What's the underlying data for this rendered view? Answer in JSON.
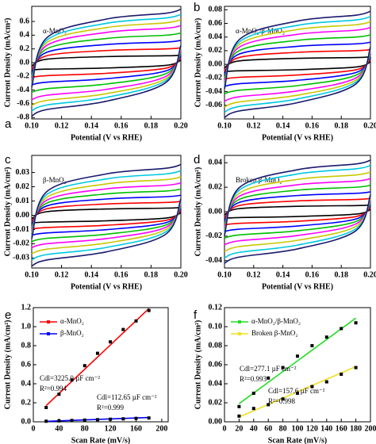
{
  "chart_data": [
    {
      "type": "cv",
      "label": "a",
      "annotation": "α-MnO₂",
      "xlabel": "Potential (V vs RHE)",
      "ylabel": "Current Density (mA/cm²)",
      "xlim": [
        0.1,
        0.2
      ],
      "xticks": [
        {
          "value": 0.1,
          "label": "0.10"
        },
        {
          "value": 0.12,
          "label": "0.12"
        },
        {
          "value": 0.14,
          "label": "0.14"
        },
        {
          "value": 0.16,
          "label": "0.16"
        },
        {
          "value": 0.18,
          "label": "0.18"
        },
        {
          "value": 0.2,
          "label": "0.20"
        }
      ],
      "ylim": [
        -0.82,
        0.82
      ],
      "yticks": [
        -0.8,
        -0.6,
        -0.4,
        -0.2,
        {
          "value": 0,
          "label": "0.0"
        },
        0.2,
        0.4,
        0.6
      ],
      "x": [
        0.1,
        0.11,
        0.15,
        0.19,
        0.2
      ],
      "series": [
        {
          "color": "#000000",
          "upper": [
            -0.05,
            0.05,
            0.088,
            0.1,
            0.108
          ],
          "lower": [
            -0.108,
            -0.095,
            -0.078,
            -0.04,
            0.035
          ]
        },
        {
          "color": "#ff0000",
          "upper": [
            -0.1,
            0.1,
            0.176,
            0.2,
            0.216
          ],
          "lower": [
            -0.216,
            -0.19,
            -0.156,
            -0.08,
            0.07
          ]
        },
        {
          "color": "#0000ff",
          "upper": [
            -0.15,
            0.15,
            0.264,
            0.3,
            0.324
          ],
          "lower": [
            -0.324,
            -0.285,
            -0.234,
            -0.12,
            0.105
          ]
        },
        {
          "color": "#00c000",
          "upper": [
            -0.2,
            0.2,
            0.352,
            0.4,
            0.432
          ],
          "lower": [
            -0.432,
            -0.38,
            -0.312,
            -0.16,
            0.14
          ]
        },
        {
          "color": "#ff00ff",
          "upper": [
            -0.25,
            0.25,
            0.44,
            0.5,
            0.54
          ],
          "lower": [
            -0.54,
            -0.475,
            -0.39,
            -0.2,
            0.175
          ]
        },
        {
          "color": "#c8c800",
          "upper": [
            -0.29,
            0.29,
            0.51,
            0.58,
            0.626
          ],
          "lower": [
            -0.626,
            -0.551,
            -0.452,
            -0.232,
            0.203
          ]
        },
        {
          "color": "#00c8e0",
          "upper": [
            -0.325,
            0.325,
            0.572,
            0.65,
            0.702
          ],
          "lower": [
            -0.702,
            -0.618,
            -0.507,
            -0.26,
            0.228
          ]
        },
        {
          "color": "#1a1a6e",
          "upper": [
            -0.36,
            0.36,
            0.634,
            0.72,
            0.778
          ],
          "lower": [
            -0.778,
            -0.684,
            -0.562,
            -0.288,
            0.252
          ]
        }
      ]
    },
    {
      "type": "cv",
      "label": "b",
      "annotation": "α-MnO₂/β-MnO₂",
      "xlabel": "Potential (V vs RHE)",
      "ylabel": "Current Density (mA/cm²)",
      "xlim": [
        0.1,
        0.2
      ],
      "xticks": [
        {
          "value": 0.1,
          "label": "0.10"
        },
        {
          "value": 0.12,
          "label": "0.12"
        },
        {
          "value": 0.14,
          "label": "0.14"
        },
        {
          "value": 0.16,
          "label": "0.16"
        },
        {
          "value": 0.18,
          "label": "0.18"
        },
        {
          "value": 0.2,
          "label": "0.20"
        }
      ],
      "ylim": [
        -0.08,
        0.085
      ],
      "yticks": [
        -0.06,
        -0.04,
        -0.02,
        {
          "value": 0,
          "label": "0.00"
        },
        0.02,
        0.04,
        0.06,
        0.08
      ],
      "x": [
        0.1,
        0.11,
        0.15,
        0.19,
        0.2
      ],
      "series": [
        {
          "color": "#000000",
          "upper": [
            -0.005,
            0.005,
            0.0088,
            0.01,
            0.0108
          ],
          "lower": [
            -0.0108,
            -0.0095,
            -0.0078,
            -0.004,
            0.0035
          ]
        },
        {
          "color": "#ff0000",
          "upper": [
            -0.01,
            0.01,
            0.0176,
            0.02,
            0.0216
          ],
          "lower": [
            -0.0216,
            -0.019,
            -0.0156,
            -0.008,
            0.007
          ]
        },
        {
          "color": "#0000ff",
          "upper": [
            -0.015,
            0.015,
            0.0264,
            0.03,
            0.0324
          ],
          "lower": [
            -0.0324,
            -0.0285,
            -0.0234,
            -0.012,
            0.0105
          ]
        },
        {
          "color": "#00c000",
          "upper": [
            -0.02,
            0.02,
            0.0352,
            0.04,
            0.0432
          ],
          "lower": [
            -0.0432,
            -0.038,
            -0.0312,
            -0.016,
            0.014
          ]
        },
        {
          "color": "#ff00ff",
          "upper": [
            -0.025,
            0.025,
            0.044,
            0.05,
            0.054
          ],
          "lower": [
            -0.054,
            -0.0475,
            -0.039,
            -0.02,
            0.0175
          ]
        },
        {
          "color": "#c8c800",
          "upper": [
            -0.029,
            0.029,
            0.051,
            0.058,
            0.0626
          ],
          "lower": [
            -0.0626,
            -0.0551,
            -0.0452,
            -0.0232,
            0.0203
          ]
        },
        {
          "color": "#00c8e0",
          "upper": [
            -0.0325,
            0.0325,
            0.0572,
            0.065,
            0.0702
          ],
          "lower": [
            -0.0702,
            -0.0618,
            -0.0507,
            -0.026,
            0.0228
          ]
        },
        {
          "color": "#1a1a6e",
          "upper": [
            -0.036,
            0.036,
            0.0634,
            0.072,
            0.0778
          ],
          "lower": [
            -0.0778,
            -0.0684,
            -0.0562,
            -0.0288,
            0.0252
          ]
        }
      ]
    },
    {
      "type": "cv",
      "label": "c",
      "annotation": "β-MnO₂",
      "xlabel": "Potential (V vs RHE)",
      "ylabel": "Current Density (mA/cm²)",
      "xlim": [
        0.1,
        0.2
      ],
      "xticks": [
        {
          "value": 0.1,
          "label": "0.10"
        },
        {
          "value": 0.12,
          "label": "0.12"
        },
        {
          "value": 0.14,
          "label": "0.14"
        },
        {
          "value": 0.16,
          "label": "0.16"
        },
        {
          "value": 0.18,
          "label": "0.18"
        },
        {
          "value": 0.2,
          "label": "0.20"
        }
      ],
      "ylim": [
        -0.037,
        0.042
      ],
      "yticks": [
        -0.03,
        -0.02,
        -0.01,
        {
          "value": 0,
          "label": "0.00"
        },
        0.01,
        0.02,
        0.03
      ],
      "x": [
        0.1,
        0.11,
        0.15,
        0.19,
        0.2
      ],
      "series": [
        {
          "color": "#000000",
          "upper": [
            -0.0025,
            0.0025,
            0.0044,
            0.005,
            0.0054
          ],
          "lower": [
            -0.0054,
            -0.0048,
            -0.0039,
            -0.002,
            0.0018
          ]
        },
        {
          "color": "#ff0000",
          "upper": [
            -0.0045,
            0.0045,
            0.0079,
            0.009,
            0.0097
          ],
          "lower": [
            -0.0097,
            -0.0086,
            -0.007,
            -0.0036,
            0.0032
          ]
        },
        {
          "color": "#0000ff",
          "upper": [
            -0.0065,
            0.0065,
            0.0114,
            0.013,
            0.014
          ],
          "lower": [
            -0.014,
            -0.0124,
            -0.0101,
            -0.0052,
            0.0046
          ]
        },
        {
          "color": "#00c000",
          "upper": [
            -0.0085,
            0.0085,
            0.015,
            0.017,
            0.0184
          ],
          "lower": [
            -0.0184,
            -0.0162,
            -0.0133,
            -0.0068,
            0.006
          ]
        },
        {
          "color": "#ff00ff",
          "upper": [
            -0.0105,
            0.0105,
            0.0185,
            0.021,
            0.0227
          ],
          "lower": [
            -0.0227,
            -0.02,
            -0.0164,
            -0.0084,
            0.0074
          ]
        },
        {
          "color": "#c8c800",
          "upper": [
            -0.0125,
            0.0125,
            0.022,
            0.025,
            0.027
          ],
          "lower": [
            -0.027,
            -0.0238,
            -0.0195,
            -0.01,
            0.0088
          ]
        },
        {
          "color": "#00c8e0",
          "upper": [
            -0.0145,
            0.0145,
            0.0255,
            0.029,
            0.0313
          ],
          "lower": [
            -0.0313,
            -0.0276,
            -0.0226,
            -0.0116,
            0.0102
          ]
        },
        {
          "color": "#1a1a6e",
          "upper": [
            -0.0165,
            0.0165,
            0.029,
            0.033,
            0.0356
          ],
          "lower": [
            -0.0356,
            -0.0314,
            -0.0257,
            -0.0132,
            0.0116
          ]
        }
      ]
    },
    {
      "type": "cv",
      "label": "d",
      "annotation": "Broken β-MnO₂",
      "xlabel": "Potential (V vs RHE)",
      "ylabel": "Current Density (mA/cm²)",
      "xlim": [
        0.1,
        0.2
      ],
      "xticks": [
        {
          "value": 0.1,
          "label": "0.10"
        },
        {
          "value": 0.12,
          "label": "0.12"
        },
        {
          "value": 0.14,
          "label": "0.14"
        },
        {
          "value": 0.16,
          "label": "0.16"
        },
        {
          "value": 0.18,
          "label": "0.18"
        },
        {
          "value": 0.2,
          "label": "0.20"
        }
      ],
      "ylim": [
        -0.046,
        0.046
      ],
      "yticks": [
        -0.04,
        -0.02,
        {
          "value": 0,
          "label": "0.00"
        },
        0.02,
        0.04
      ],
      "x": [
        0.1,
        0.11,
        0.15,
        0.19,
        0.2
      ],
      "series": [
        {
          "color": "#000000",
          "upper": [
            -0.0025,
            0.0025,
            0.0044,
            0.005,
            0.0054
          ],
          "lower": [
            -0.0054,
            -0.0048,
            -0.0039,
            -0.002,
            0.0018
          ]
        },
        {
          "color": "#ff0000",
          "upper": [
            -0.005,
            0.005,
            0.0088,
            0.01,
            0.0108
          ],
          "lower": [
            -0.0108,
            -0.0095,
            -0.0078,
            -0.004,
            0.0035
          ]
        },
        {
          "color": "#0000ff",
          "upper": [
            -0.0075,
            0.0075,
            0.0132,
            0.015,
            0.0162
          ],
          "lower": [
            -0.0162,
            -0.0143,
            -0.0117,
            -0.006,
            0.0053
          ]
        },
        {
          "color": "#00c000",
          "upper": [
            -0.01,
            0.01,
            0.0176,
            0.02,
            0.0216
          ],
          "lower": [
            -0.0216,
            -0.019,
            -0.0156,
            -0.008,
            0.007
          ]
        },
        {
          "color": "#ff00ff",
          "upper": [
            -0.0125,
            0.0125,
            0.022,
            0.025,
            0.027
          ],
          "lower": [
            -0.027,
            -0.0238,
            -0.0195,
            -0.01,
            0.0088
          ]
        },
        {
          "color": "#c8c800",
          "upper": [
            -0.015,
            0.015,
            0.0264,
            0.03,
            0.0324
          ],
          "lower": [
            -0.0324,
            -0.0285,
            -0.0234,
            -0.012,
            0.0105
          ]
        },
        {
          "color": "#00c8e0",
          "upper": [
            -0.0175,
            0.0175,
            0.0308,
            0.035,
            0.0378
          ],
          "lower": [
            -0.0378,
            -0.0333,
            -0.0273,
            -0.014,
            0.0123
          ]
        },
        {
          "color": "#1a1a6e",
          "upper": [
            -0.0195,
            0.0195,
            0.0343,
            0.039,
            0.0421
          ],
          "lower": [
            -0.0421,
            -0.0371,
            -0.0304,
            -0.0156,
            0.0137
          ]
        }
      ]
    },
    {
      "type": "scatter",
      "label": "e",
      "xlabel": "Scan Rate (mV/s)",
      "ylabel": "Current Density (mA/cm²)",
      "annotations": [
        "Cdl=3225.0 µF cm⁻²",
        "R²=0.994",
        "Cdl=112.65 µF cm⁻²",
        "R²=0.999"
      ],
      "xlim": [
        0,
        210
      ],
      "xticks": [
        0,
        40,
        80,
        120,
        160,
        200
      ],
      "ylim": [
        0,
        1.2
      ],
      "yticks": [
        {
          "value": 0,
          "label": "0.0"
        },
        0.2,
        0.4,
        0.6,
        0.8,
        {
          "value": 1,
          "label": "1.0"
        },
        1.2
      ],
      "x": [
        20,
        40,
        60,
        80,
        100,
        120,
        140,
        160,
        180
      ],
      "marker_color": "#000000",
      "series": [
        {
          "name": "α-MnO₂",
          "color": "#ff0000",
          "values": [
            0.15,
            0.29,
            0.44,
            0.59,
            0.72,
            0.84,
            0.97,
            1.06,
            1.17
          ],
          "fit_x": [
            20,
            180
          ],
          "fit": [
            0.17,
            1.19
          ]
        },
        {
          "name": "β-MnO₂",
          "color": "#0000ff",
          "values": [
            0.006,
            0.01,
            0.014,
            0.018,
            0.022,
            0.027,
            0.031,
            0.036,
            0.04
          ],
          "fit_x": [
            20,
            180
          ],
          "fit": [
            0.005,
            0.045
          ]
        }
      ]
    },
    {
      "type": "scatter",
      "label": "f",
      "xlabel": "Scan Rate (mV/s)",
      "ylabel": "Current Density (mA/cm²)",
      "annotations": [
        "Cdl=277.1 µF cm⁻²",
        "R²=0.993",
        "Cdl=157.6 µF cm⁻²",
        "R²=0.998"
      ],
      "xlim": [
        0,
        200
      ],
      "xticks": [
        0,
        20,
        40,
        60,
        80,
        100,
        120,
        140,
        160,
        180,
        200
      ],
      "ylim": [
        0,
        0.12
      ],
      "yticks": [
        {
          "value": 0,
          "label": "0.00"
        },
        0.02,
        0.04,
        0.06,
        0.08,
        {
          "value": 0.1,
          "label": "0.10"
        },
        0.12
      ],
      "x": [
        20,
        40,
        60,
        80,
        100,
        120,
        140,
        160,
        180
      ],
      "marker_color": "#000000",
      "series": [
        {
          "name": "α-MnO₂/β-MnO₂",
          "color": "#22dd22",
          "values": [
            0.016,
            0.03,
            0.046,
            0.057,
            0.069,
            0.08,
            0.089,
            0.098,
            0.104
          ],
          "fit_x": [
            20,
            180
          ],
          "fit": [
            0.019,
            0.109
          ]
        },
        {
          "name": "Broken β-MnO₂",
          "color": "#f0e020",
          "values": [
            0.006,
            0.014,
            0.018,
            0.024,
            0.03,
            0.037,
            0.042,
            0.05,
            0.057
          ],
          "fit_x": [
            20,
            180
          ],
          "fit": [
            0.005,
            0.058
          ]
        }
      ]
    }
  ]
}
